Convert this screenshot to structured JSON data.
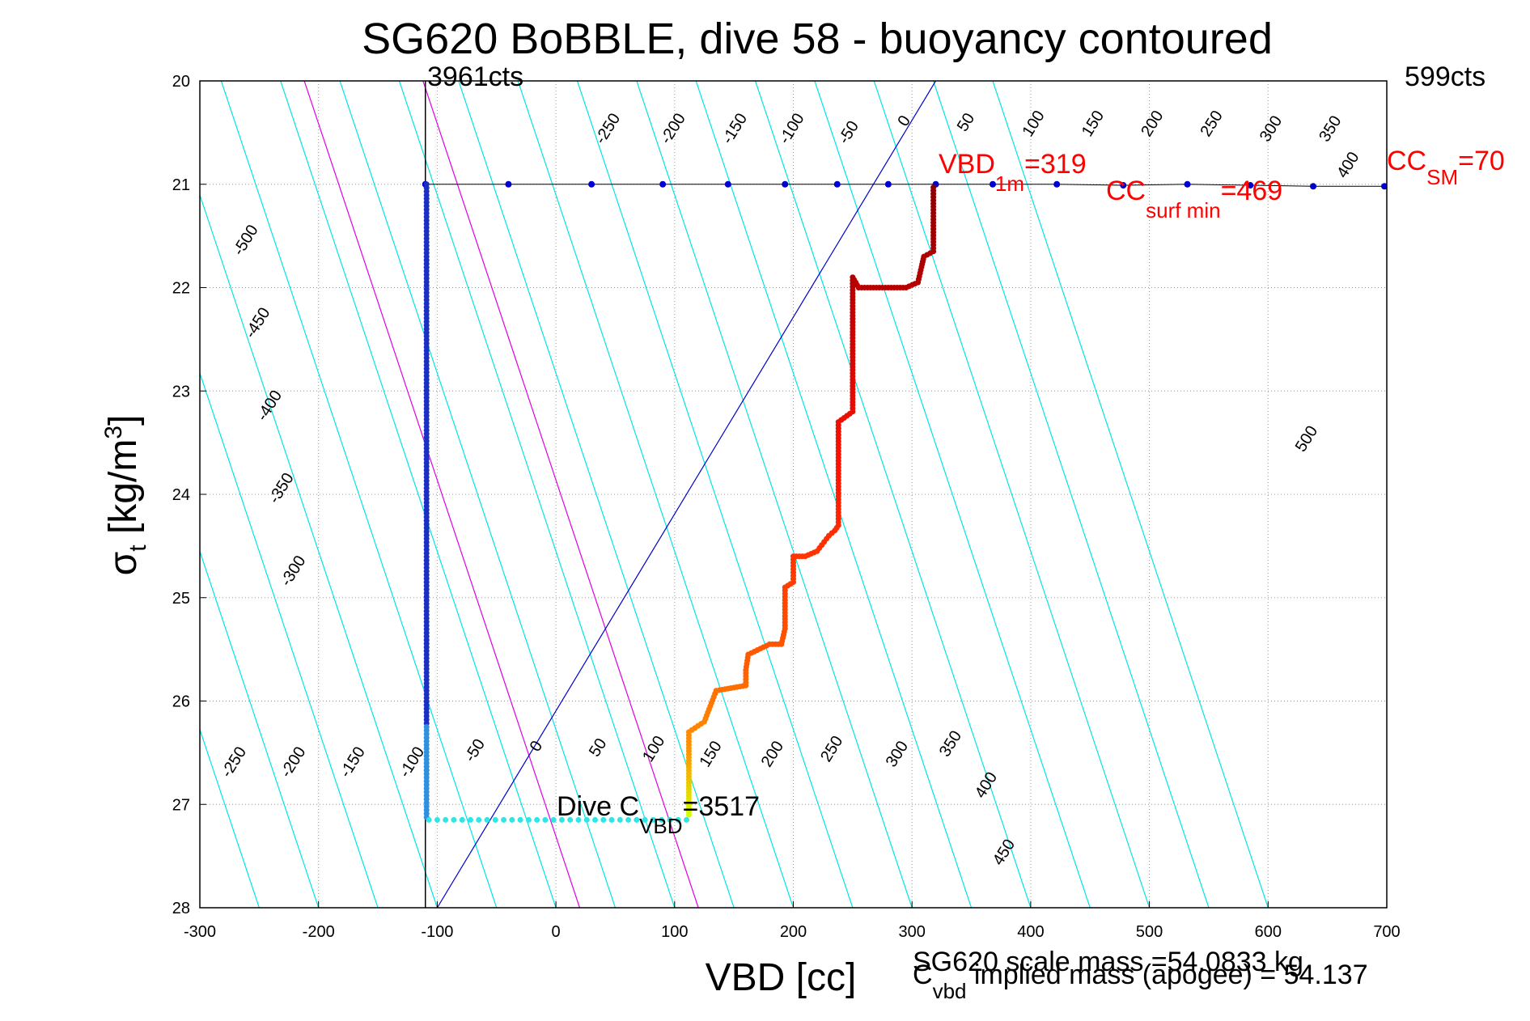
{
  "chart_data": {
    "type": "scatter",
    "title": "SG620 BoBBLE, dive 58 - buoyancy contoured",
    "xlabel": "VBD [cc]",
    "ylabel": {
      "main": "σ",
      "sub": "t",
      "units": "[kg/m",
      "sup": "3",
      "close": "]"
    },
    "xlim": [
      -300,
      700
    ],
    "ylim": [
      28,
      20
    ],
    "x_ticks": [
      "-300",
      "-200",
      "-100",
      "0",
      "100",
      "200",
      "300",
      "400",
      "500",
      "600",
      "700"
    ],
    "y_ticks": [
      "20",
      "21",
      "22",
      "23",
      "24",
      "25",
      "26",
      "27",
      "28"
    ],
    "grid": true,
    "counts_left": "3961cts",
    "counts_right": "599cts",
    "vertical_line_x": -110,
    "contours": {
      "slope_vbd_per_sigma": 29,
      "cyan_levels": [
        -550,
        -500,
        -450,
        -400,
        -350,
        -300,
        -250,
        -200,
        -150,
        -100,
        -50,
        0,
        50,
        100,
        150,
        200,
        250,
        300,
        350,
        400,
        450,
        500,
        550,
        600
      ],
      "zero_line_offset": -100,
      "magenta_offsets": [
        20,
        120
      ],
      "cyan_color": "#00e5e5",
      "zero_color": "#0000cc",
      "magenta_color": "#e000e0",
      "upper_labels": [
        {
          "text": "-250",
          "x": 40,
          "y": 20.62
        },
        {
          "text": "-200",
          "x": 95,
          "y": 20.62
        },
        {
          "text": "-150",
          "x": 147,
          "y": 20.62
        },
        {
          "text": "-100",
          "x": 195,
          "y": 20.62
        },
        {
          "text": "-50",
          "x": 245,
          "y": 20.62
        },
        {
          "text": "0",
          "x": 295,
          "y": 20.45
        },
        {
          "text": "50",
          "x": 345,
          "y": 20.5
        },
        {
          "text": "100",
          "x": 400,
          "y": 20.55
        },
        {
          "text": "150",
          "x": 450,
          "y": 20.55
        },
        {
          "text": "200",
          "x": 500,
          "y": 20.55
        },
        {
          "text": "250",
          "x": 550,
          "y": 20.55
        },
        {
          "text": "300",
          "x": 600,
          "y": 20.6
        },
        {
          "text": "350",
          "x": 650,
          "y": 20.6
        },
        {
          "text": "400",
          "x": 665,
          "y": 20.95
        },
        {
          "text": "-500",
          "x": -265,
          "y": 21.7
        },
        {
          "text": "-450",
          "x": -255,
          "y": 22.5
        },
        {
          "text": "-400",
          "x": -245,
          "y": 23.3
        },
        {
          "text": "-350",
          "x": -235,
          "y": 24.1
        },
        {
          "text": "-300",
          "x": -225,
          "y": 24.9
        },
        {
          "text": "500",
          "x": 630,
          "y": 23.6
        }
      ],
      "lower_labels": [
        {
          "text": "-250",
          "x": -275,
          "y": 26.75
        },
        {
          "text": "-200",
          "x": -225,
          "y": 26.75
        },
        {
          "text": "-150",
          "x": -175,
          "y": 26.75
        },
        {
          "text": "-100",
          "x": -125,
          "y": 26.75
        },
        {
          "text": "-50",
          "x": -70,
          "y": 26.6
        },
        {
          "text": "0",
          "x": -15,
          "y": 26.5
        },
        {
          "text": "50",
          "x": 35,
          "y": 26.55
        },
        {
          "text": "100",
          "x": 80,
          "y": 26.6
        },
        {
          "text": "150",
          "x": 128,
          "y": 26.65
        },
        {
          "text": "200",
          "x": 180,
          "y": 26.65
        },
        {
          "text": "250",
          "x": 230,
          "y": 26.6
        },
        {
          "text": "300",
          "x": 285,
          "y": 26.65
        },
        {
          "text": "350",
          "x": 330,
          "y": 26.55
        },
        {
          "text": "400",
          "x": 360,
          "y": 26.95
        },
        {
          "text": "450",
          "x": 375,
          "y": 27.6
        }
      ]
    },
    "surface_points": [
      {
        "x": -110,
        "y": 21.0
      },
      {
        "x": -40,
        "y": 21.0
      },
      {
        "x": 30,
        "y": 21.0
      },
      {
        "x": 90,
        "y": 21.0
      },
      {
        "x": 145,
        "y": 21.0
      },
      {
        "x": 193,
        "y": 21.0
      },
      {
        "x": 237,
        "y": 21.0
      },
      {
        "x": 280,
        "y": 21.0
      },
      {
        "x": 320,
        "y": 21.0
      },
      {
        "x": 368,
        "y": 21.0
      },
      {
        "x": 422,
        "y": 21.0
      },
      {
        "x": 478,
        "y": 21.01
      },
      {
        "x": 532,
        "y": 21.0
      },
      {
        "x": 585,
        "y": 21.01
      },
      {
        "x": 638,
        "y": 21.02
      },
      {
        "x": 698,
        "y": 21.02
      }
    ],
    "descent_x": -109,
    "descent_sigma_range": [
      21.0,
      27.15
    ],
    "bottom_sigma": 27.15,
    "bottom_x_range": [
      -107,
      110
    ],
    "ascent_path": [
      [
        112,
        27.1
      ],
      [
        112,
        26.3
      ],
      [
        125,
        26.2
      ],
      [
        130,
        26.05
      ],
      [
        135,
        25.9
      ],
      [
        160,
        25.85
      ],
      [
        160,
        25.7
      ],
      [
        162,
        25.55
      ],
      [
        180,
        25.45
      ],
      [
        190,
        25.45
      ],
      [
        193,
        25.3
      ],
      [
        193,
        24.9
      ],
      [
        200,
        24.85
      ],
      [
        200,
        24.6
      ],
      [
        210,
        24.6
      ],
      [
        220,
        24.55
      ],
      [
        230,
        24.4
      ],
      [
        235,
        24.35
      ],
      [
        238,
        24.3
      ],
      [
        238,
        23.3
      ],
      [
        250,
        23.2
      ],
      [
        250,
        21.9
      ],
      [
        255,
        22.0
      ],
      [
        270,
        22.0
      ],
      [
        295,
        22.0
      ],
      [
        305,
        21.95
      ],
      [
        308,
        21.8
      ],
      [
        310,
        21.7
      ],
      [
        318,
        21.65
      ],
      [
        318,
        21.0
      ]
    ],
    "annotations": {
      "vbd1m": {
        "main": "VBD",
        "sub": "1m",
        "value": "=319"
      },
      "ccsurf": {
        "main": "CC",
        "sub": "surf min",
        "value": "=469"
      },
      "ccsm": {
        "main": "CC",
        "sub": "SM",
        "value": "=70"
      },
      "dive_cvbd": {
        "main": "Dive C",
        "sub": "VBD",
        "value": "=3517"
      },
      "scale_mass": "SG620 scale mass =54.0833 kg",
      "implied_mass": {
        "main": "C",
        "sub": "vbd",
        "rest": " implied mass (apogee) = 54.137"
      }
    },
    "colors": {
      "surface_point": "#0000cc",
      "descent": "#1a2fc4",
      "bottom": "#2ee6e6",
      "ann_red": "#ff0000"
    }
  }
}
